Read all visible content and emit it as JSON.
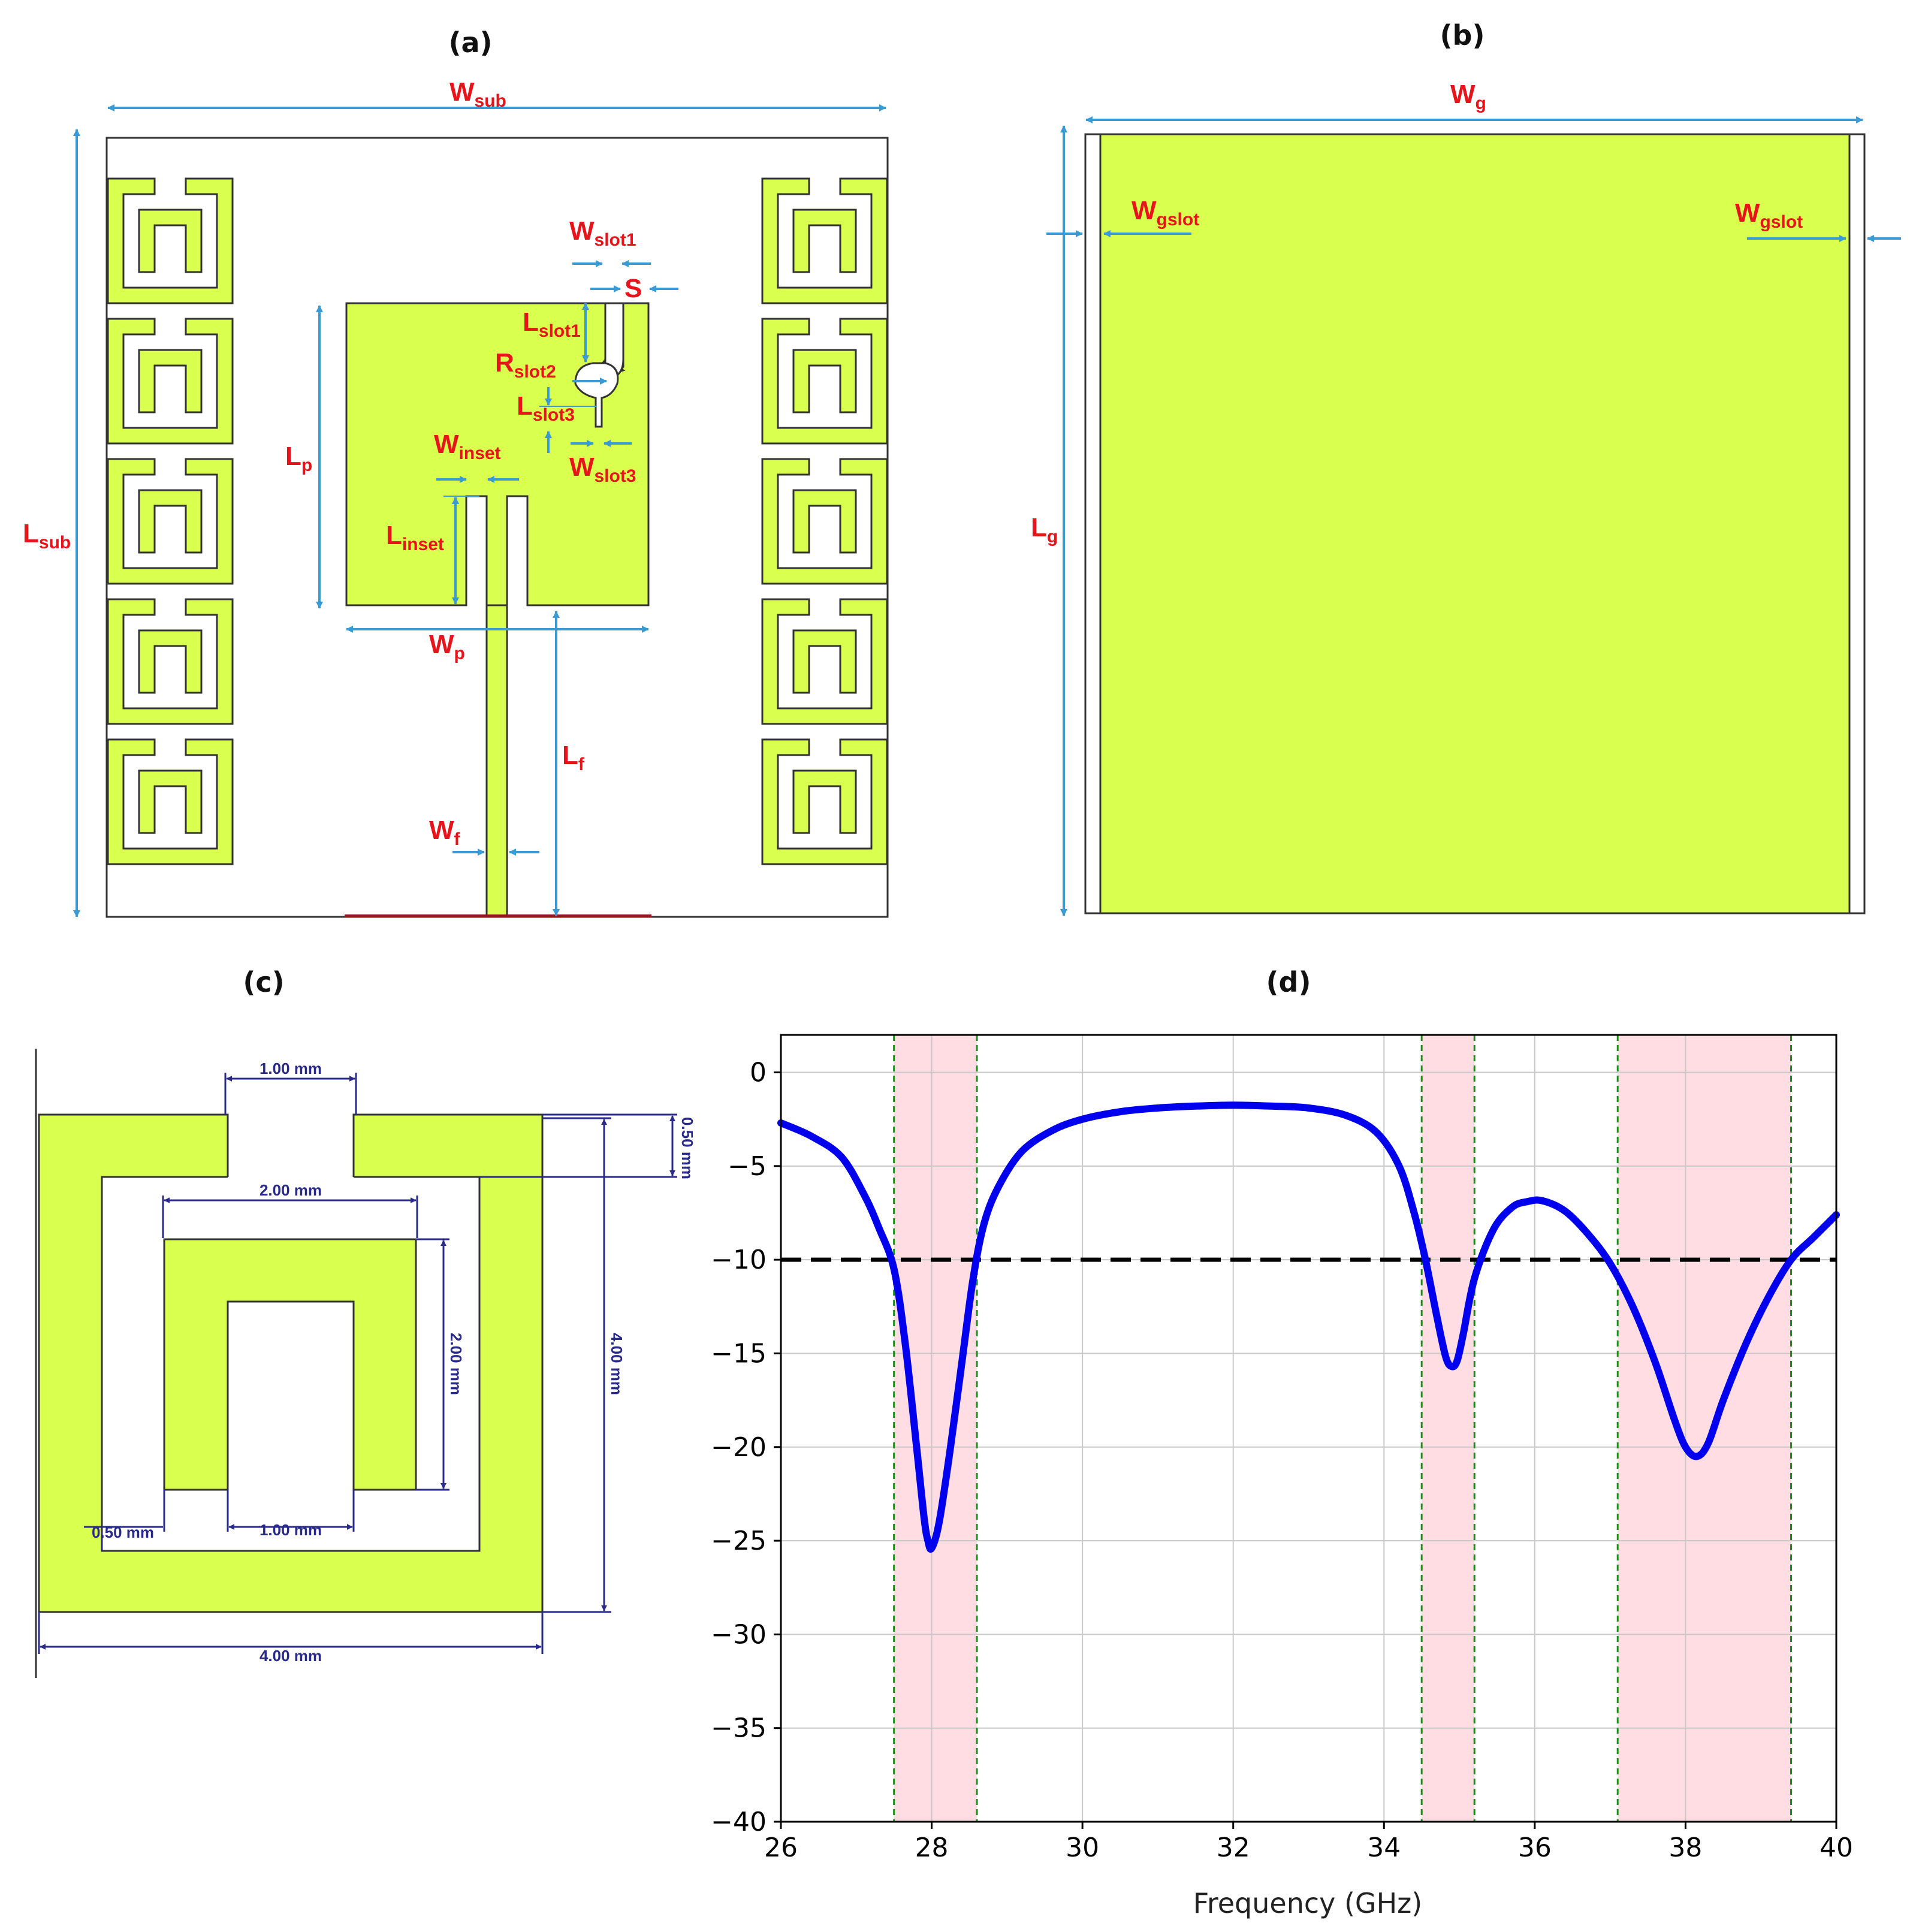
{
  "panels": {
    "a": {
      "title": "(a)"
    },
    "b": {
      "title": "(b)"
    },
    "c": {
      "title": "(c)"
    },
    "d": {
      "title": "(d)"
    }
  },
  "colors": {
    "copper": "#d9ff4f",
    "outline": "#333333",
    "arrow": "#3a9bd4",
    "label": "#e8141b",
    "dimension": "#2a2a8a",
    "curve": "#0000ee",
    "band": "#ffdde2",
    "band_edge": "#1a8f1a"
  },
  "labels_a": {
    "wsub": {
      "main": "W",
      "sub": "sub"
    },
    "lsub": {
      "main": "L",
      "sub": "sub"
    },
    "wslot1": {
      "main": "W",
      "sub": "slot1"
    },
    "s": {
      "main": "S",
      "sub": ""
    },
    "lslot1": {
      "main": "L",
      "sub": "slot1"
    },
    "rslot2": {
      "main": "R",
      "sub": "slot2"
    },
    "lslot3": {
      "main": "L",
      "sub": "slot3"
    },
    "wslot3": {
      "main": "W",
      "sub": "slot3"
    },
    "winset": {
      "main": "W",
      "sub": "inset"
    },
    "lp": {
      "main": "L",
      "sub": "p"
    },
    "linset": {
      "main": "L",
      "sub": "inset"
    },
    "wp": {
      "main": "W",
      "sub": "p"
    },
    "lf": {
      "main": "L",
      "sub": "f"
    },
    "wf": {
      "main": "W",
      "sub": "f"
    }
  },
  "labels_b": {
    "wg": {
      "main": "W",
      "sub": "g"
    },
    "lg": {
      "main": "L",
      "sub": "g"
    },
    "wgslot_left": {
      "main": "W",
      "sub": "gslot"
    },
    "wgslot_right": {
      "main": "W",
      "sub": "gslot"
    }
  },
  "dims_c": {
    "top_gap": "1.00 mm",
    "inner_width": "2.00 mm",
    "right_small": "0.50 mm",
    "inner_height": "2.00 mm",
    "outer_height": "4.00 mm",
    "left_small": "0.50 mm",
    "bottom_gap": "1.00 mm",
    "outer_width": "4.00 mm"
  },
  "chart_data": {
    "type": "line",
    "title": "",
    "xlabel": "Frequency (GHz)",
    "ylabel": "",
    "xlim": [
      26,
      40
    ],
    "ylim": [
      -40,
      2
    ],
    "xticks": [
      26,
      28,
      30,
      32,
      34,
      36,
      38,
      40
    ],
    "yticks": [
      0,
      -5,
      -10,
      -15,
      -20,
      -25,
      -30,
      -35,
      -40
    ],
    "grid": true,
    "threshold": -10,
    "bands": [
      [
        27.5,
        28.6
      ],
      [
        34.5,
        35.2
      ],
      [
        37.1,
        39.4
      ]
    ],
    "series": [
      {
        "name": "",
        "x": [
          26.0,
          26.4,
          26.8,
          27.1,
          27.3,
          27.5,
          27.65,
          27.8,
          27.9,
          27.95,
          28.0,
          28.1,
          28.25,
          28.4,
          28.55,
          28.7,
          28.9,
          29.2,
          29.6,
          30.0,
          30.5,
          31.0,
          31.5,
          32.0,
          32.5,
          33.0,
          33.5,
          33.9,
          34.2,
          34.4,
          34.55,
          34.7,
          34.82,
          34.9,
          34.97,
          35.05,
          35.2,
          35.45,
          35.7,
          35.9,
          36.1,
          36.4,
          36.7,
          37.0,
          37.3,
          37.6,
          37.85,
          38.0,
          38.15,
          38.3,
          38.5,
          38.8,
          39.1,
          39.4,
          39.7,
          40.0
        ],
        "y": [
          -2.7,
          -3.4,
          -4.5,
          -6.5,
          -8.3,
          -10.5,
          -14.5,
          -20.0,
          -23.8,
          -25.0,
          -25.4,
          -24.0,
          -20.0,
          -15.5,
          -11.0,
          -8.0,
          -6.0,
          -4.2,
          -3.1,
          -2.5,
          -2.1,
          -1.9,
          -1.8,
          -1.75,
          -1.8,
          -1.9,
          -2.3,
          -3.2,
          -5.0,
          -7.5,
          -10.0,
          -13.0,
          -15.2,
          -15.7,
          -15.4,
          -14.0,
          -11.0,
          -8.4,
          -7.2,
          -6.9,
          -6.85,
          -7.4,
          -8.6,
          -10.2,
          -12.5,
          -15.5,
          -18.5,
          -20.0,
          -20.5,
          -19.8,
          -17.5,
          -14.5,
          -12.0,
          -10.0,
          -8.8,
          -7.6
        ]
      }
    ]
  }
}
